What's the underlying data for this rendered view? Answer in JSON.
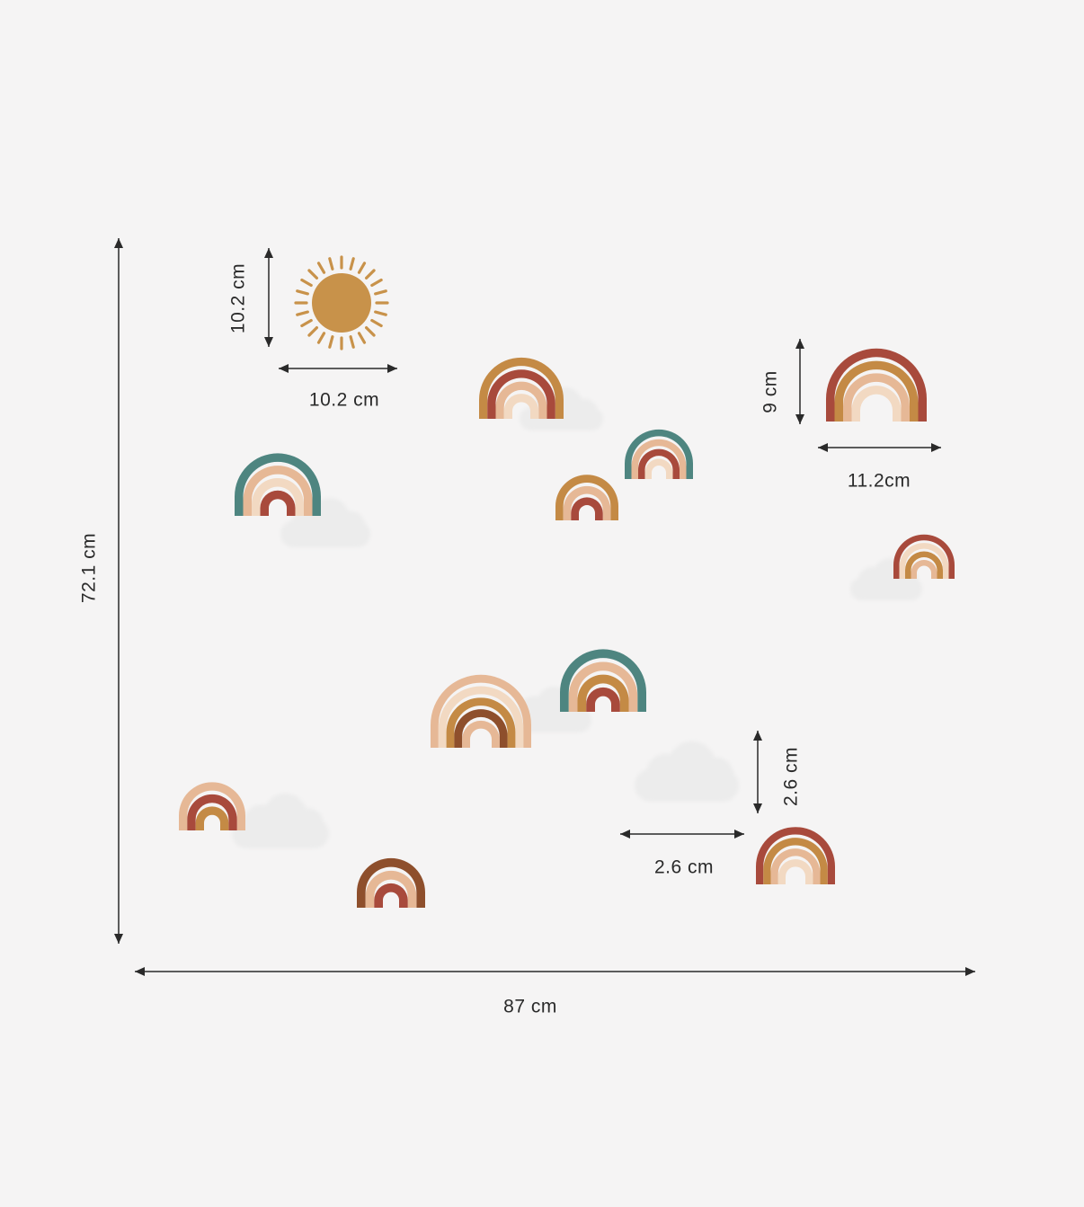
{
  "dimensions": {
    "total_width": "87 cm",
    "total_height": "72.1 cm",
    "sun_height": "10.2 cm",
    "sun_width": "10.2 cm",
    "large_rainbow_height": "9 cm",
    "large_rainbow_width": "11.2cm",
    "cloud_height": "2.6 cm",
    "cloud_width": "2.6 cm"
  },
  "colors": {
    "background": "#f5f4f4",
    "arrow": "#2a2a2a",
    "sun": "#c8924a",
    "rust": "#a84a3c",
    "ochre": "#c48a45",
    "peach": "#e6b896",
    "cream": "#f2d9c2",
    "teal": "#4e8580",
    "brown": "#8e4f2c",
    "cloud": "#ececec"
  },
  "icons": {
    "sun": "sun-icon",
    "rainbow": "rainbow-icon",
    "cloud": "cloud-icon",
    "arrow": "double-arrow-icon"
  }
}
